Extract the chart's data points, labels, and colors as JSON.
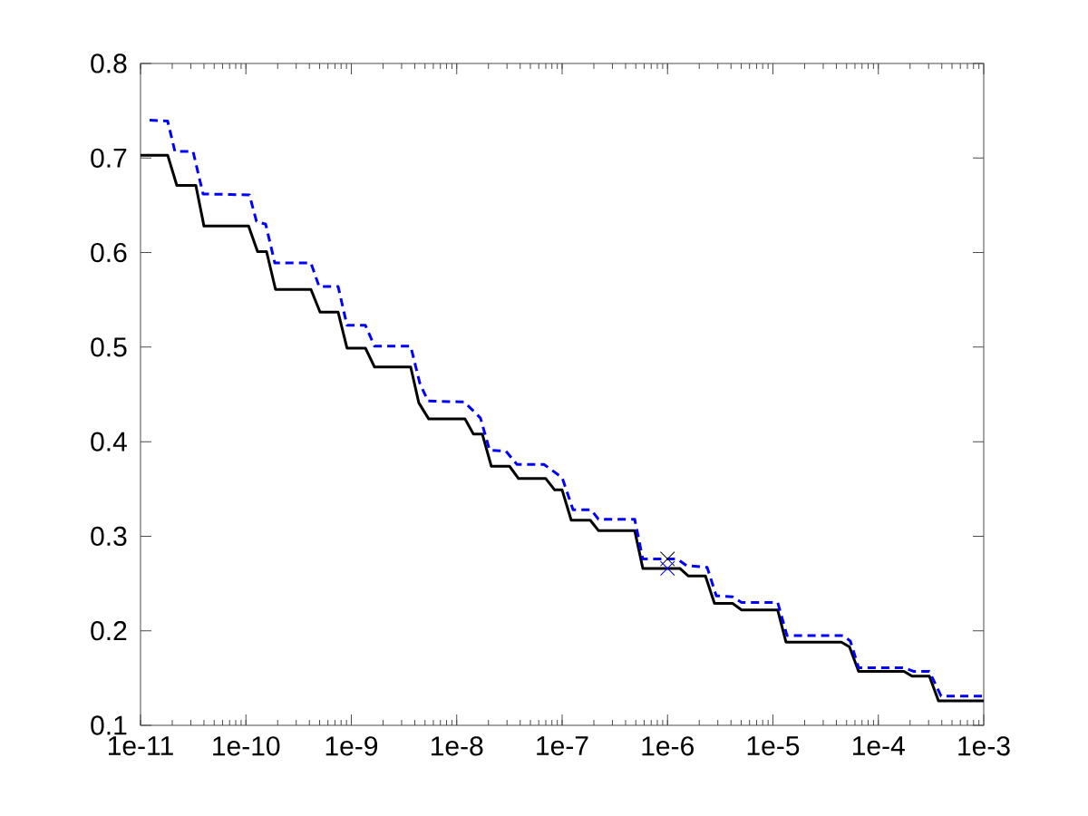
{
  "chart_data": {
    "type": "line",
    "log": "x",
    "xlim": [
      1e-11,
      0.001
    ],
    "ylim": [
      0.1,
      0.8
    ],
    "xticks": [
      {
        "value": 1e-11,
        "label": "1e-11"
      },
      {
        "value": 1e-10,
        "label": "1e-10"
      },
      {
        "value": 1e-09,
        "label": "1e-9"
      },
      {
        "value": 1e-08,
        "label": "1e-8"
      },
      {
        "value": 1e-07,
        "label": "1e-7"
      },
      {
        "value": 1e-06,
        "label": "1e-6"
      },
      {
        "value": 1e-05,
        "label": "1e-5"
      },
      {
        "value": 0.0001,
        "label": "1e-4"
      },
      {
        "value": 0.001,
        "label": "1e-3"
      }
    ],
    "yticks": [
      0.1,
      0.2,
      0.3,
      0.4,
      0.5,
      0.6,
      0.7,
      0.8
    ],
    "series": [
      {
        "color": "#000000",
        "line_style": "solid",
        "marker": "none",
        "x": [
          1e-11,
          1.81e-11,
          2.21e-11,
          3.35e-11,
          4e-11,
          1.06e-10,
          1.29e-10,
          1.57e-10,
          1.91e-10,
          4.14e-10,
          5.05e-10,
          7.5e-10,
          9.1e-10,
          1.36e-09,
          1.66e-09,
          3.66e-09,
          4.37e-09,
          5.43e-09,
          1.2e-08,
          1.44e-08,
          1.75e-08,
          2.13e-08,
          3.17e-08,
          3.86e-08,
          7e-08,
          8.5e-08,
          1e-07,
          1.22e-07,
          1.85e-07,
          2.21e-07,
          4.88e-07,
          5.83e-07,
          1.31e-06,
          1.57e-06,
          2.29e-06,
          2.79e-06,
          4.14e-06,
          5.05e-06,
          1.11e-05,
          1.33e-05,
          4.46e-05,
          5.33e-05,
          6.5e-05,
          0.000175,
          0.000209,
          0.000305,
          0.000372,
          0.001
        ],
        "values": [
          0.703,
          0.703,
          0.671,
          0.671,
          0.628,
          0.628,
          0.601,
          0.601,
          0.561,
          0.561,
          0.537,
          0.537,
          0.499,
          0.499,
          0.479,
          0.479,
          0.441,
          0.424,
          0.424,
          0.408,
          0.408,
          0.374,
          0.374,
          0.361,
          0.361,
          0.349,
          0.349,
          0.317,
          0.317,
          0.306,
          0.306,
          0.266,
          0.266,
          0.258,
          0.258,
          0.229,
          0.229,
          0.222,
          0.222,
          0.188,
          0.188,
          0.183,
          0.157,
          0.157,
          0.152,
          0.152,
          0.126,
          0.126
        ]
      },
      {
        "color": "#0000ff",
        "line_style": "dashed",
        "marker": "none",
        "x": [
          1.22e-11,
          1.81e-11,
          2.12e-11,
          3.15e-11,
          3.92e-11,
          1.08e-10,
          1.26e-10,
          1.54e-10,
          1.88e-10,
          4.14e-10,
          4.95e-10,
          7.5e-10,
          9.1e-10,
          1.36e-09,
          1.66e-09,
          3.66e-09,
          4.46e-09,
          5.33e-09,
          1.18e-08,
          1.68e-08,
          2.05e-08,
          2.93e-08,
          3.72e-08,
          6.73e-08,
          1e-07,
          1.27e-07,
          1.88e-07,
          2.21e-07,
          4.88e-07,
          5.83e-07,
          1.24e-06,
          1.51e-06,
          2.38e-06,
          2.9e-06,
          4.14e-06,
          5.05e-06,
          1.11e-05,
          1.36e-05,
          4.65e-05,
          5.43e-05,
          6.5e-05,
          0.000175,
          0.000218,
          0.000305,
          0.000394,
          0.001
        ],
        "values": [
          0.74,
          0.739,
          0.707,
          0.707,
          0.662,
          0.661,
          0.633,
          0.63,
          0.589,
          0.589,
          0.564,
          0.564,
          0.523,
          0.523,
          0.501,
          0.501,
          0.462,
          0.443,
          0.442,
          0.425,
          0.391,
          0.39,
          0.376,
          0.376,
          0.362,
          0.328,
          0.328,
          0.318,
          0.318,
          0.276,
          0.276,
          0.269,
          0.267,
          0.237,
          0.236,
          0.23,
          0.23,
          0.195,
          0.195,
          0.189,
          0.161,
          0.161,
          0.157,
          0.157,
          0.131,
          0.131
        ]
      },
      {
        "type": "scatter",
        "color": "#000000",
        "marker": "cross",
        "x": [
          1e-06
        ],
        "values": [
          0.276
        ]
      },
      {
        "type": "scatter",
        "color": "#0000ff",
        "marker": "cross",
        "x": [
          1e-06
        ],
        "values": [
          0.266
        ]
      }
    ]
  }
}
